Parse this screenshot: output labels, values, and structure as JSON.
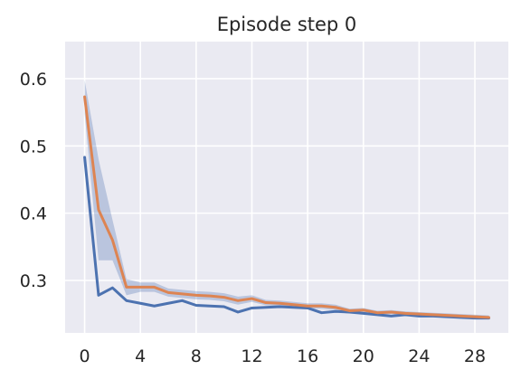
{
  "chart_data": {
    "type": "line",
    "title": "Episode step 0",
    "xlabel": "",
    "ylabel": "",
    "xlim": [
      -1.4,
      30.4
    ],
    "ylim": [
      0.222,
      0.655
    ],
    "x_ticks": [
      0,
      4,
      8,
      12,
      16,
      20,
      24,
      28
    ],
    "y_ticks": [
      0.3,
      0.4,
      0.5,
      0.6
    ],
    "y_tick_labels": [
      "0.3",
      "0.4",
      "0.5",
      "0.6"
    ],
    "grid": true,
    "legend": "none",
    "background_color": "#EAEAF2",
    "grid_color": "#FFFFFF",
    "x": [
      0,
      1,
      2,
      3,
      4,
      5,
      6,
      7,
      8,
      9,
      10,
      11,
      12,
      13,
      14,
      15,
      16,
      17,
      18,
      19,
      20,
      21,
      22,
      23,
      24,
      25,
      26,
      27,
      28,
      29
    ],
    "series": [
      {
        "color": "#4C72B0",
        "values": [
          0.483,
          0.278,
          0.289,
          0.27,
          0.266,
          0.262,
          0.266,
          0.27,
          0.263,
          0.262,
          0.261,
          0.253,
          0.259,
          0.26,
          0.261,
          0.26,
          0.259,
          0.252,
          0.254,
          0.253,
          0.251,
          0.249,
          0.247,
          0.249,
          0.247,
          0.247,
          0.246,
          0.245,
          0.244,
          0.244
        ],
        "band_lower": [
          0.483,
          0.278,
          0.289,
          0.27,
          0.266,
          0.262,
          0.266,
          0.27,
          0.263,
          0.262,
          0.261,
          0.253,
          0.259,
          0.26,
          0.261,
          0.26,
          0.259,
          0.252,
          0.254,
          0.253,
          0.251,
          0.249,
          0.247,
          0.249,
          0.247,
          0.247,
          0.246,
          0.245,
          0.244,
          0.244
        ],
        "band_upper": [
          0.483,
          0.278,
          0.289,
          0.27,
          0.266,
          0.262,
          0.266,
          0.27,
          0.263,
          0.262,
          0.261,
          0.253,
          0.259,
          0.26,
          0.261,
          0.26,
          0.259,
          0.252,
          0.254,
          0.253,
          0.251,
          0.249,
          0.247,
          0.249,
          0.247,
          0.247,
          0.246,
          0.245,
          0.244,
          0.244
        ]
      },
      {
        "color": "#DD8452",
        "band_color": "#4C72B0",
        "values": [
          0.573,
          0.405,
          0.36,
          0.29,
          0.29,
          0.29,
          0.282,
          0.28,
          0.278,
          0.277,
          0.275,
          0.27,
          0.273,
          0.267,
          0.266,
          0.264,
          0.262,
          0.262,
          0.26,
          0.255,
          0.256,
          0.252,
          0.253,
          0.251,
          0.25,
          0.249,
          0.248,
          0.247,
          0.246,
          0.245
        ],
        "band_lower": [
          0.548,
          0.33,
          0.33,
          0.278,
          0.283,
          0.283,
          0.276,
          0.274,
          0.272,
          0.271,
          0.269,
          0.264,
          0.268,
          0.263,
          0.262,
          0.26,
          0.258,
          0.258,
          0.256,
          0.252,
          0.253,
          0.249,
          0.25,
          0.248,
          0.247,
          0.246,
          0.245,
          0.244,
          0.243,
          0.242
        ],
        "band_upper": [
          0.598,
          0.48,
          0.39,
          0.302,
          0.297,
          0.297,
          0.288,
          0.286,
          0.284,
          0.283,
          0.281,
          0.276,
          0.278,
          0.271,
          0.27,
          0.268,
          0.266,
          0.266,
          0.264,
          0.258,
          0.259,
          0.255,
          0.256,
          0.254,
          0.253,
          0.252,
          0.251,
          0.25,
          0.249,
          0.248
        ]
      }
    ]
  }
}
